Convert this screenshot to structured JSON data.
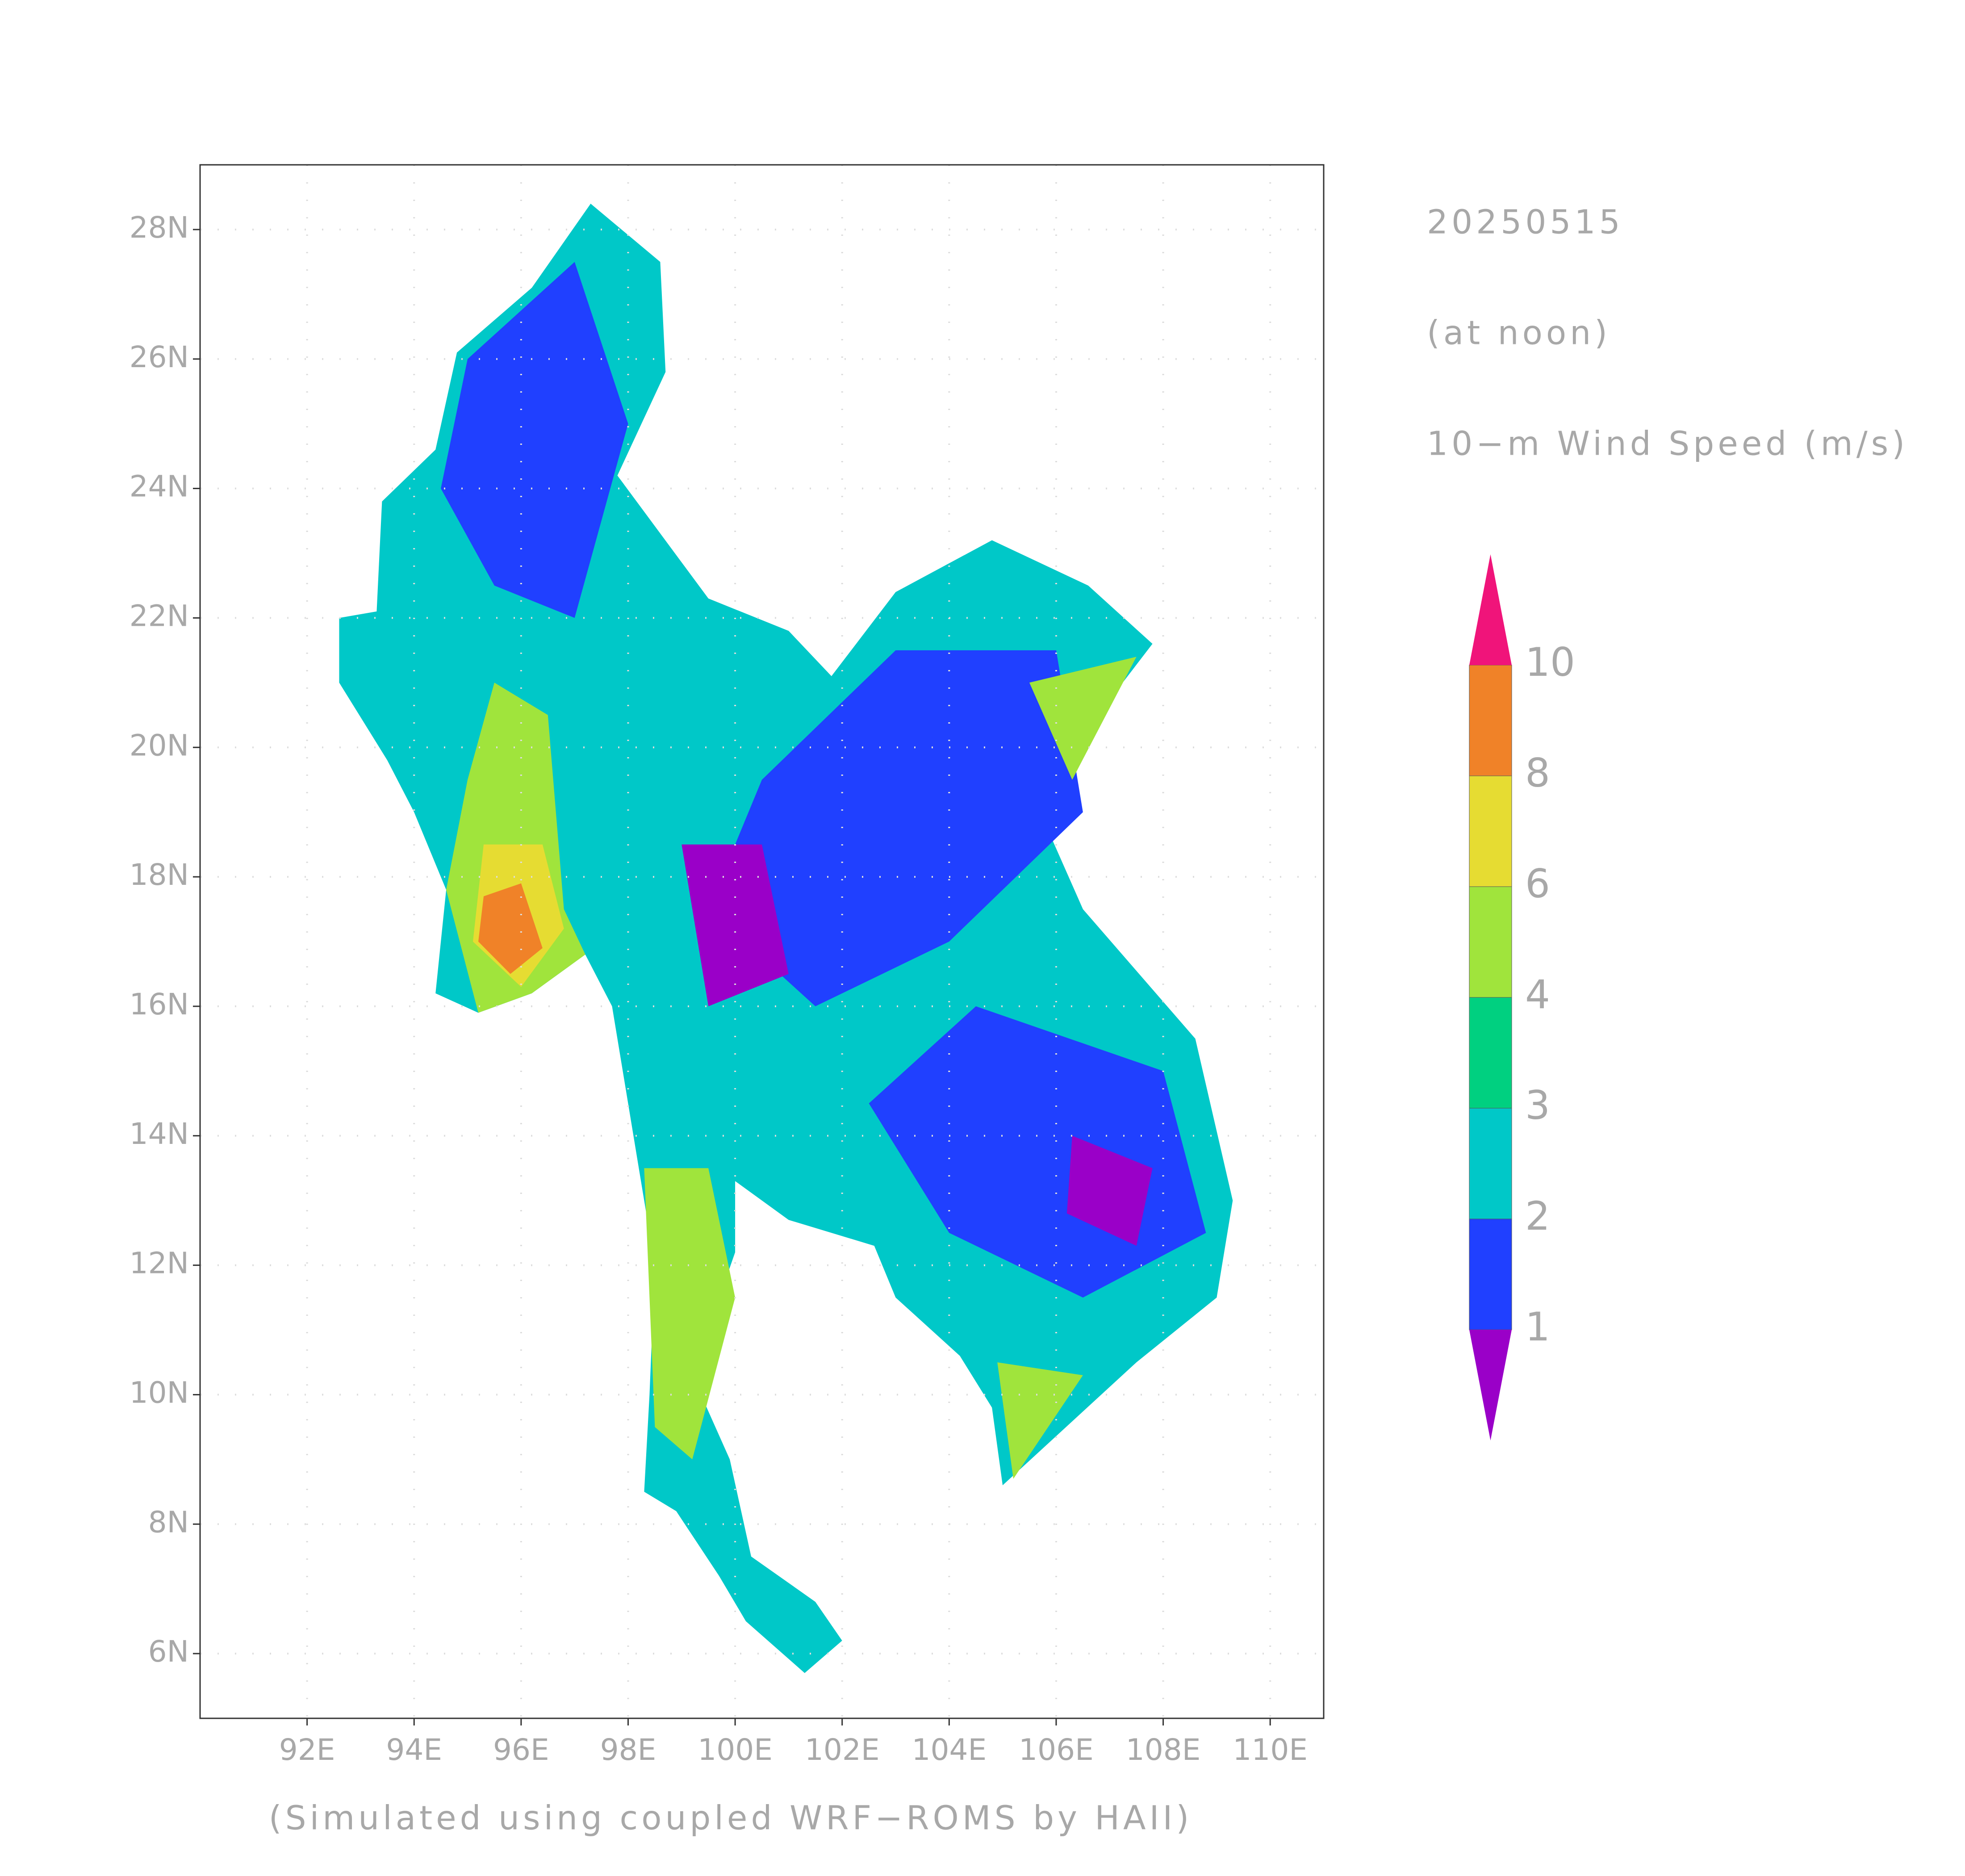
{
  "map": {
    "date": "20250515",
    "time": "(at noon)",
    "variable": "10−m Wind Speed (m/s)",
    "footer": "(Simulated using coupled WRF−ROMS by HAII)",
    "xlim": [
      90,
      111
    ],
    "ylim": [
      5,
      29
    ],
    "xticks": [
      {
        "value": 92,
        "label": "92E"
      },
      {
        "value": 94,
        "label": "94E"
      },
      {
        "value": 96,
        "label": "96E"
      },
      {
        "value": 98,
        "label": "98E"
      },
      {
        "value": 100,
        "label": "100E"
      },
      {
        "value": 102,
        "label": "102E"
      },
      {
        "value": 104,
        "label": "104E"
      },
      {
        "value": 106,
        "label": "106E"
      },
      {
        "value": 108,
        "label": "108E"
      },
      {
        "value": 110,
        "label": "110E"
      }
    ],
    "yticks": [
      {
        "value": 6,
        "label": "6N"
      },
      {
        "value": 8,
        "label": "8N"
      },
      {
        "value": 10,
        "label": "10N"
      },
      {
        "value": 12,
        "label": "12N"
      },
      {
        "value": 14,
        "label": "14N"
      },
      {
        "value": 16,
        "label": "16N"
      },
      {
        "value": 18,
        "label": "18N"
      },
      {
        "value": 20,
        "label": "20N"
      },
      {
        "value": 22,
        "label": "22N"
      },
      {
        "value": 24,
        "label": "24N"
      },
      {
        "value": 26,
        "label": "26N"
      },
      {
        "value": 28,
        "label": "28N"
      }
    ],
    "grid": true,
    "colorbar": {
      "levels": [
        1,
        2,
        3,
        4,
        6,
        8,
        10
      ],
      "colors": [
        "#9a00c8",
        "#2040ff",
        "#00c8c8",
        "#00d080",
        "#a0e43c",
        "#e6dc32",
        "#f08228",
        "#f0147a"
      ]
    }
  }
}
